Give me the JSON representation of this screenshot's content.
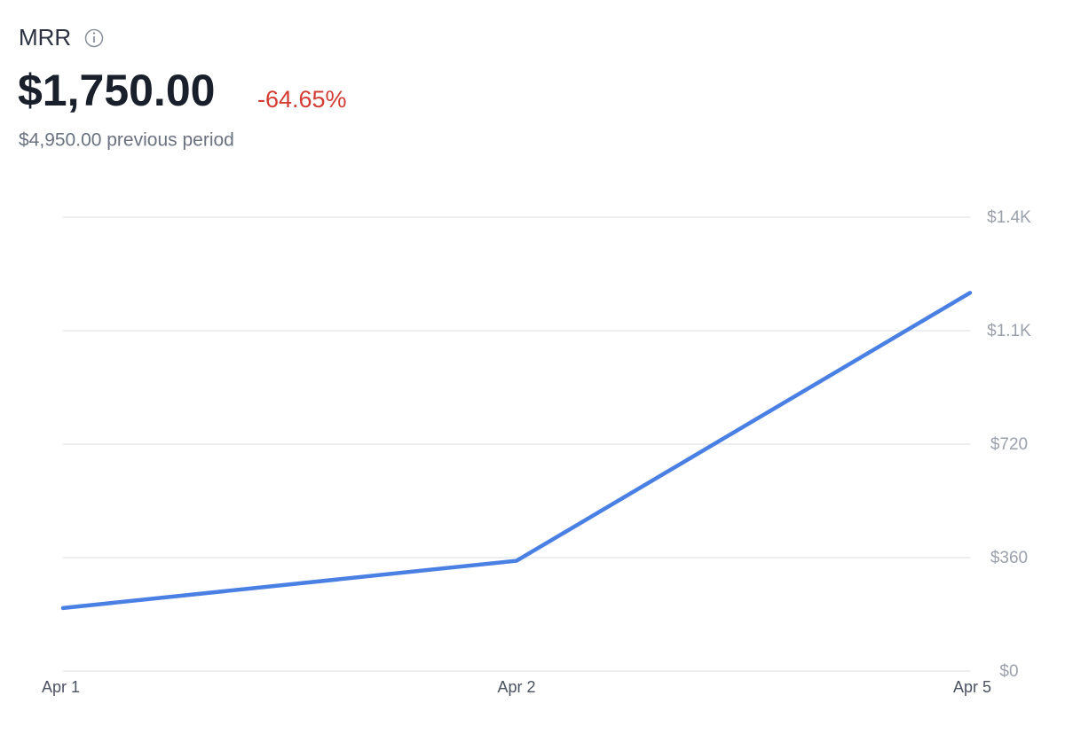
{
  "chart_data": {
    "type": "line",
    "title": "MRR",
    "summary": {
      "value": "$1,750.00",
      "change": "-64.65%",
      "previous": "$4,950.00 previous period"
    },
    "categories": [
      "Apr 1",
      "Apr 2",
      "Apr 5"
    ],
    "values": [
      200,
      350,
      1200
    ],
    "color": "#4a80e3",
    "ylim": [
      0,
      1440
    ],
    "yticks": [
      {
        "value": 0,
        "label": "$0"
      },
      {
        "value": 360,
        "label": "$360"
      },
      {
        "value": 720,
        "label": "$720"
      },
      {
        "value": 1080,
        "label": "$1.1K"
      },
      {
        "value": 1440,
        "label": "$1.4K"
      }
    ],
    "grid": true
  }
}
